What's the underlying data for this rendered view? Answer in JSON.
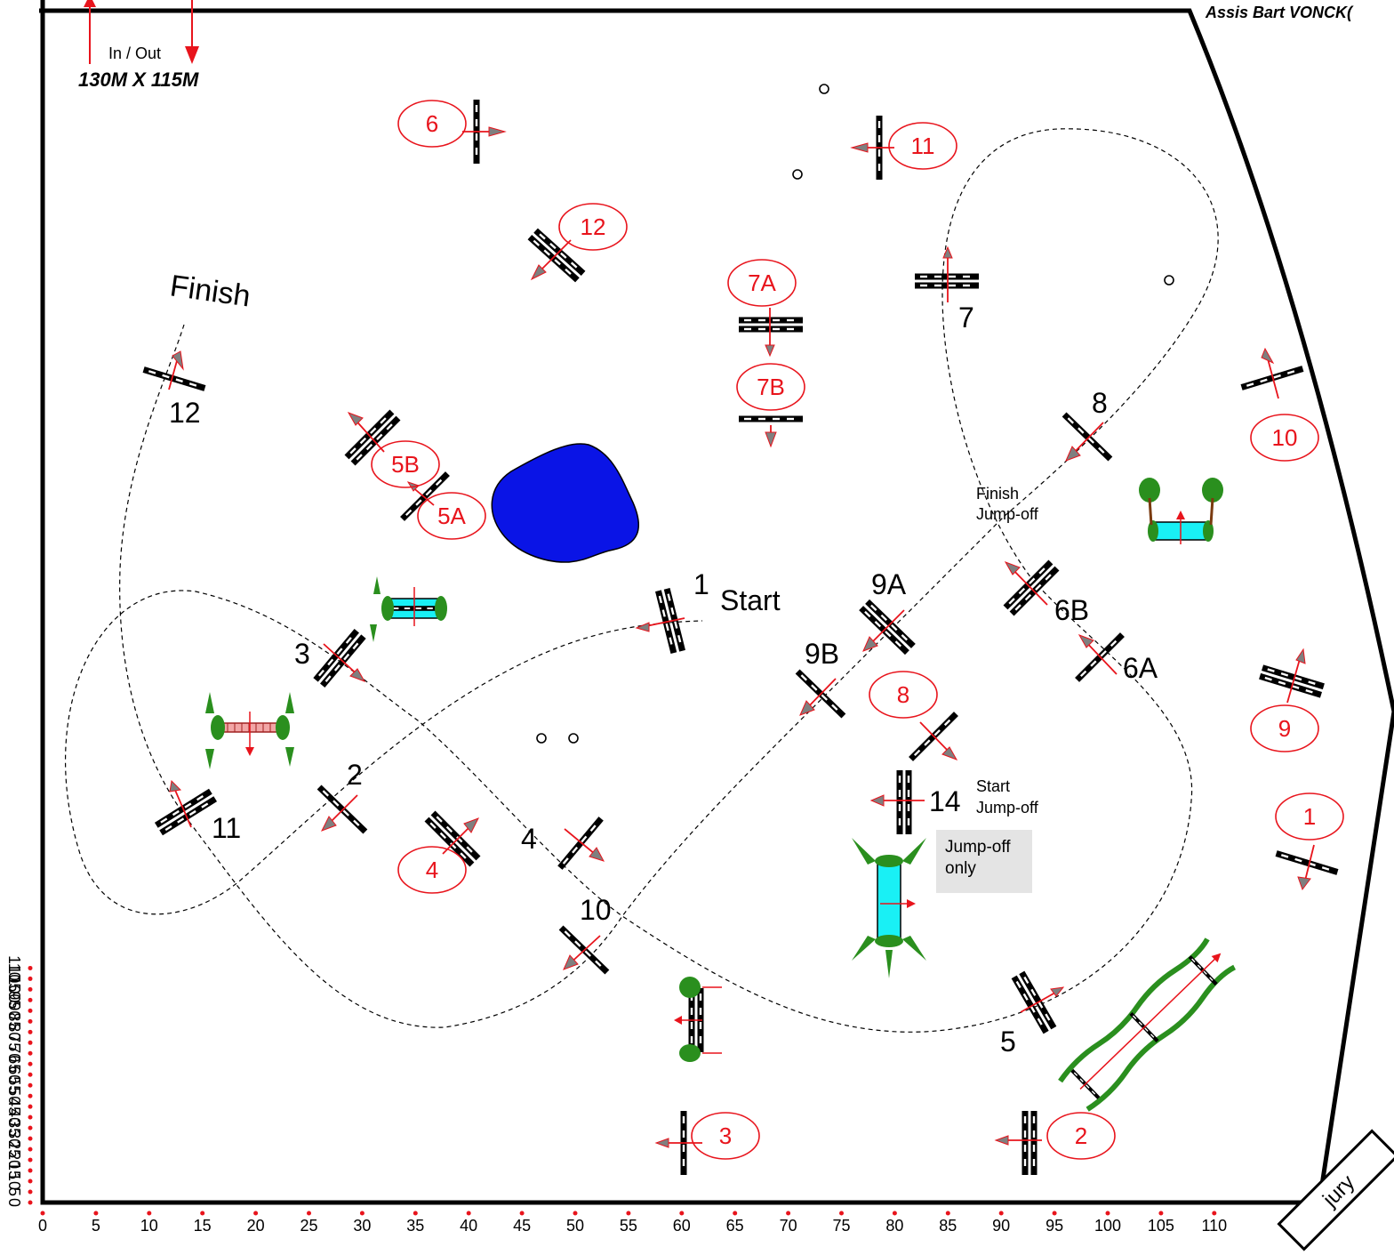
{
  "header": {
    "assistant": "Assis  Bart VONCK(",
    "in_out": "In / Out",
    "size": "130M X 115M"
  },
  "axes": {
    "x_ticks": [
      "0",
      "5",
      "10",
      "15",
      "20",
      "25",
      "30",
      "35",
      "40",
      "45",
      "50",
      "55",
      "60",
      "65",
      "70",
      "75",
      "80",
      "85",
      "90",
      "95",
      "100",
      "105",
      "110"
    ],
    "y_ticks": [
      "0",
      "5",
      "10",
      "15",
      "20",
      "25",
      "30",
      "35",
      "40",
      "45",
      "50",
      "55",
      "60",
      "65",
      "70",
      "75",
      "80",
      "85",
      "90",
      "95",
      "100",
      "105",
      "110"
    ]
  },
  "labels": {
    "finish": "Finish",
    "start": "Start",
    "finish_jumpoff_1": "Finish",
    "finish_jumpoff_2": "Jump-off",
    "start_jumpoff_1": "Start",
    "start_jumpoff_2": "Jump-off",
    "jumpoff_only_1": "Jump-off",
    "jumpoff_only_2": "only",
    "jury": "jury"
  },
  "course_numbers": {
    "n1": "1",
    "n2": "2",
    "n3": "3",
    "n4": "4",
    "n5": "5",
    "n6a": "6A",
    "n6b": "6B",
    "n7": "7",
    "n8": "8",
    "n9a": "9A",
    "n9b": "9B",
    "n10": "10",
    "n11": "11",
    "n12": "12",
    "n14": "14"
  },
  "jumpoff_numbers": {
    "j1": "1",
    "j2": "2",
    "j3": "3",
    "j4": "4",
    "j5a": "5A",
    "j5b": "5B",
    "j6": "6",
    "j7a": "7A",
    "j7b": "7B",
    "j8": "8",
    "j9": "9",
    "j10": "10",
    "j11": "11",
    "j12": "12"
  },
  "colors": {
    "route_red": "#e8141c",
    "arrow_grey": "#7f7f7f",
    "pond_blue": "#0a14e6",
    "water_cyan": "#19f0f5",
    "hedge_green": "#2a8f1e",
    "note_grey": "#e4e4e4"
  }
}
